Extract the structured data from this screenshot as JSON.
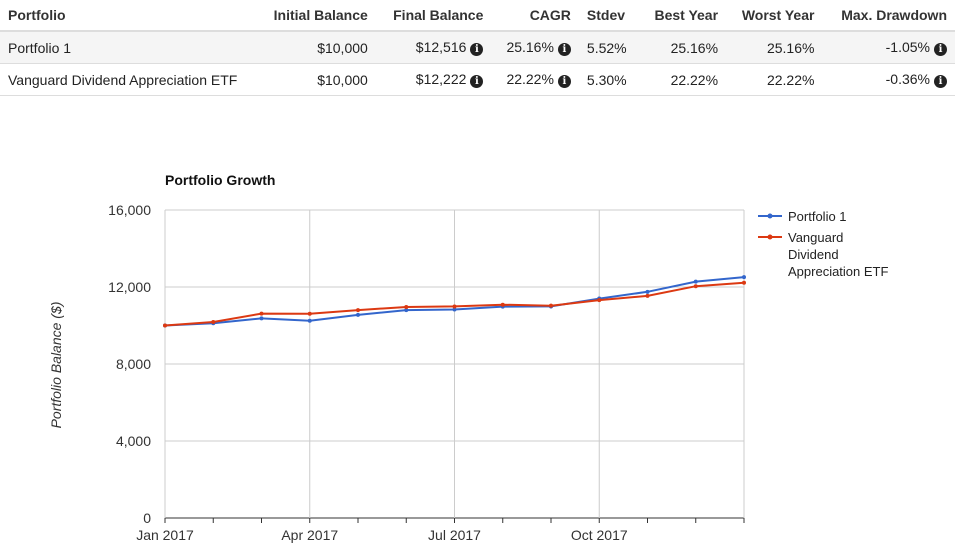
{
  "table": {
    "headers": {
      "portfolio": "Portfolio",
      "initial": "Initial Balance",
      "final": "Final Balance",
      "cagr": "CAGR",
      "stdev": "Stdev",
      "best": "Best Year",
      "worst": "Worst Year",
      "drawdown": "Max. Drawdown"
    },
    "rows": [
      {
        "name": "Portfolio 1",
        "initial": "$10,000",
        "final": "$12,516",
        "cagr": "25.16%",
        "stdev": "5.52%",
        "best": "25.16%",
        "worst": "25.16%",
        "drawdown": "-1.05%"
      },
      {
        "name": "Vanguard Dividend Appreciation ETF",
        "initial": "$10,000",
        "final": "$12,222",
        "cagr": "22.22%",
        "stdev": "5.30%",
        "best": "22.22%",
        "worst": "22.22%",
        "drawdown": "-0.36%"
      }
    ],
    "info_icon_glyph": "i"
  },
  "chart_data": {
    "type": "line",
    "title": "Portfolio Growth",
    "xlabel": "",
    "ylabel": "Portfolio Balance ($)",
    "ylim": [
      0,
      16000
    ],
    "yticks": [
      "0",
      "4,000",
      "8,000",
      "12,000",
      "16,000"
    ],
    "x_tick_labels": [
      "Jan 2017",
      "Apr 2017",
      "Jul 2017",
      "Oct 2017"
    ],
    "x": [
      "2017-01",
      "2017-02",
      "2017-03",
      "2017-04",
      "2017-05",
      "2017-06",
      "2017-07",
      "2017-08",
      "2017-09",
      "2017-10",
      "2017-11",
      "2017-12",
      "2018-01"
    ],
    "grid": true,
    "legend_position": "right",
    "series": [
      {
        "name": "Portfolio 1",
        "color": "#3366cc",
        "values": [
          10000,
          10120,
          10370,
          10250,
          10550,
          10800,
          10830,
          10980,
          10990,
          11400,
          11750,
          12280,
          12516
        ]
      },
      {
        "name": "Vanguard Dividend Appreciation ETF",
        "color": "#dc3912",
        "values": [
          10000,
          10180,
          10620,
          10610,
          10800,
          10960,
          10990,
          11080,
          11030,
          11320,
          11540,
          12040,
          12222
        ]
      }
    ],
    "legend_lines": [
      [
        "Portfolio 1"
      ],
      [
        "Vanguard",
        "Dividend",
        "Appreciation ETF"
      ]
    ]
  }
}
